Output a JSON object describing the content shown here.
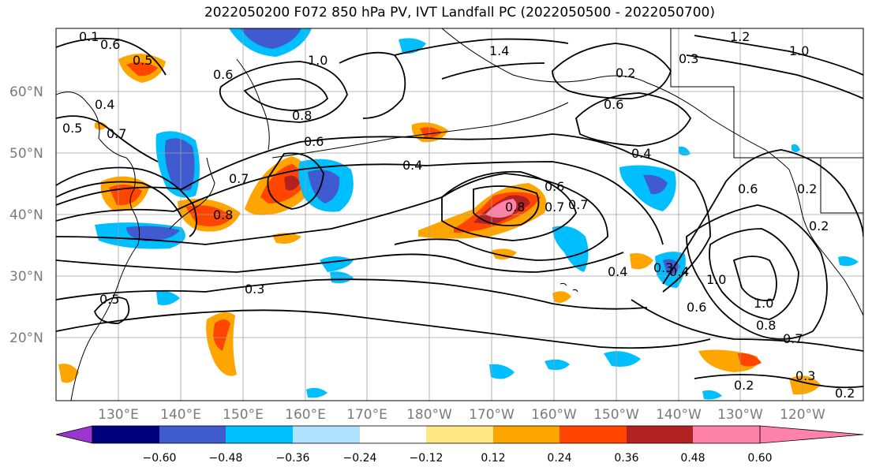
{
  "title": "2022050200 F072 850 hPa PV, IVT Landfall PC (2022050500 - 2022050700)",
  "lat_labels": [
    "60°N",
    "50°N",
    "40°N",
    "30°N",
    "20°N"
  ],
  "lon_labels": [
    "130°E",
    "140°E",
    "150°E",
    "160°E",
    "170°E",
    "180°W",
    "170°W",
    "160°W",
    "150°W",
    "140°W",
    "130°W",
    "120°W"
  ],
  "colorbar": {
    "ticks": [
      "−0.60",
      "−0.48",
      "−0.36",
      "−0.24",
      "−0.12",
      "0.12",
      "0.24",
      "0.36",
      "0.48",
      "0.60"
    ],
    "colors": [
      "#9a35d0",
      "#00007f",
      "#3f5bcf",
      "#00bfff",
      "#b0e2ff",
      "#ffffff",
      "#ffe785",
      "#ffa500",
      "#ff4500",
      "#b22222",
      "#ff82ab"
    ]
  },
  "contour_labels": [
    "0.1",
    "0.6",
    "0.5",
    "0.4",
    "0.7",
    "0.6",
    "1.0",
    "0.5",
    "0.7",
    "0.8",
    "0.6",
    "0.4",
    "0.8",
    "1.4",
    "0.2",
    "0.6",
    "0.3",
    "1.2",
    "1.0",
    "0.4",
    "0.7",
    "0.8",
    "0.6",
    "0.7",
    "0.4",
    "0.2",
    "0.6",
    "0.2",
    "0.5",
    "0.3",
    "0.4",
    "0.3",
    "1.0",
    "1.0",
    "0.6",
    "0.8",
    "0.7",
    "0.3",
    "0.2",
    "0.2"
  ]
}
